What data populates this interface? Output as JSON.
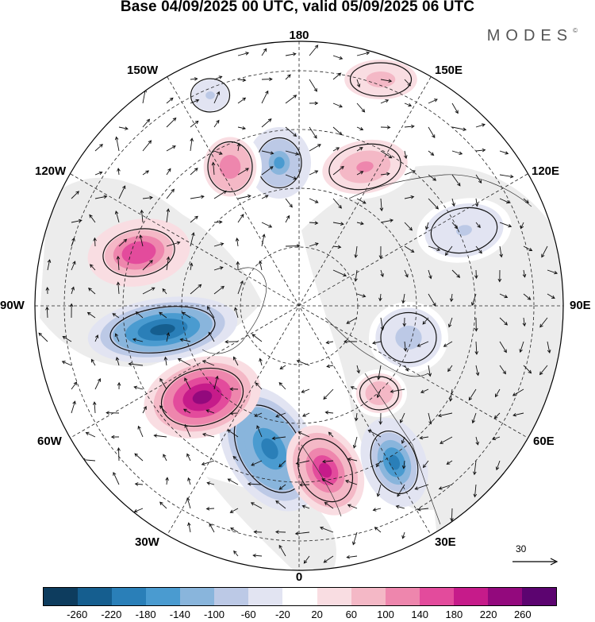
{
  "title": "Base 04/09/2025 00 UTC, valid 05/09/2025 06 UTC",
  "brand": {
    "name": "MODES",
    "mark": "©"
  },
  "longitude_labels": {
    "top": "180",
    "bottom": "0",
    "left": "90W",
    "right": "90E",
    "upper_left_1": "150W",
    "upper_left_2": "120W",
    "upper_right_1": "150E",
    "upper_right_2": "120E",
    "lower_left_1": "60W",
    "lower_left_2": "30W",
    "lower_right_1": "60E",
    "lower_right_2": "30E"
  },
  "reference_vector": {
    "label": "30"
  },
  "colorbar": {
    "colors": [
      "#0d3c5e",
      "#155e8f",
      "#2a7fb8",
      "#4a9bd0",
      "#89b5dc",
      "#bcc9e6",
      "#e2e4f2",
      "#ffffff",
      "#f9dde2",
      "#f4b8c6",
      "#ee86ad",
      "#e34b9c",
      "#c61b8a",
      "#93097d",
      "#5c0470"
    ],
    "tick_labels": [
      "-260",
      "-220",
      "-180",
      "-140",
      "-100",
      "-60",
      "-20",
      "20",
      "60",
      "100",
      "140",
      "180",
      "220",
      "260"
    ]
  },
  "anomaly_cells": [
    {
      "sign": "negative",
      "peak": -240
    },
    {
      "sign": "negative",
      "peak": -210
    },
    {
      "sign": "negative",
      "peak": -180
    },
    {
      "sign": "negative",
      "peak": -150
    },
    {
      "sign": "negative",
      "peak": -80
    },
    {
      "sign": "negative",
      "peak": -70
    },
    {
      "sign": "negative",
      "peak": -60
    },
    {
      "sign": "positive",
      "peak": 250
    },
    {
      "sign": "positive",
      "peak": 200
    },
    {
      "sign": "positive",
      "peak": 170
    },
    {
      "sign": "positive",
      "peak": 130
    },
    {
      "sign": "positive",
      "peak": 110
    },
    {
      "sign": "positive",
      "peak": 100
    },
    {
      "sign": "positive",
      "peak": 90
    }
  ]
}
